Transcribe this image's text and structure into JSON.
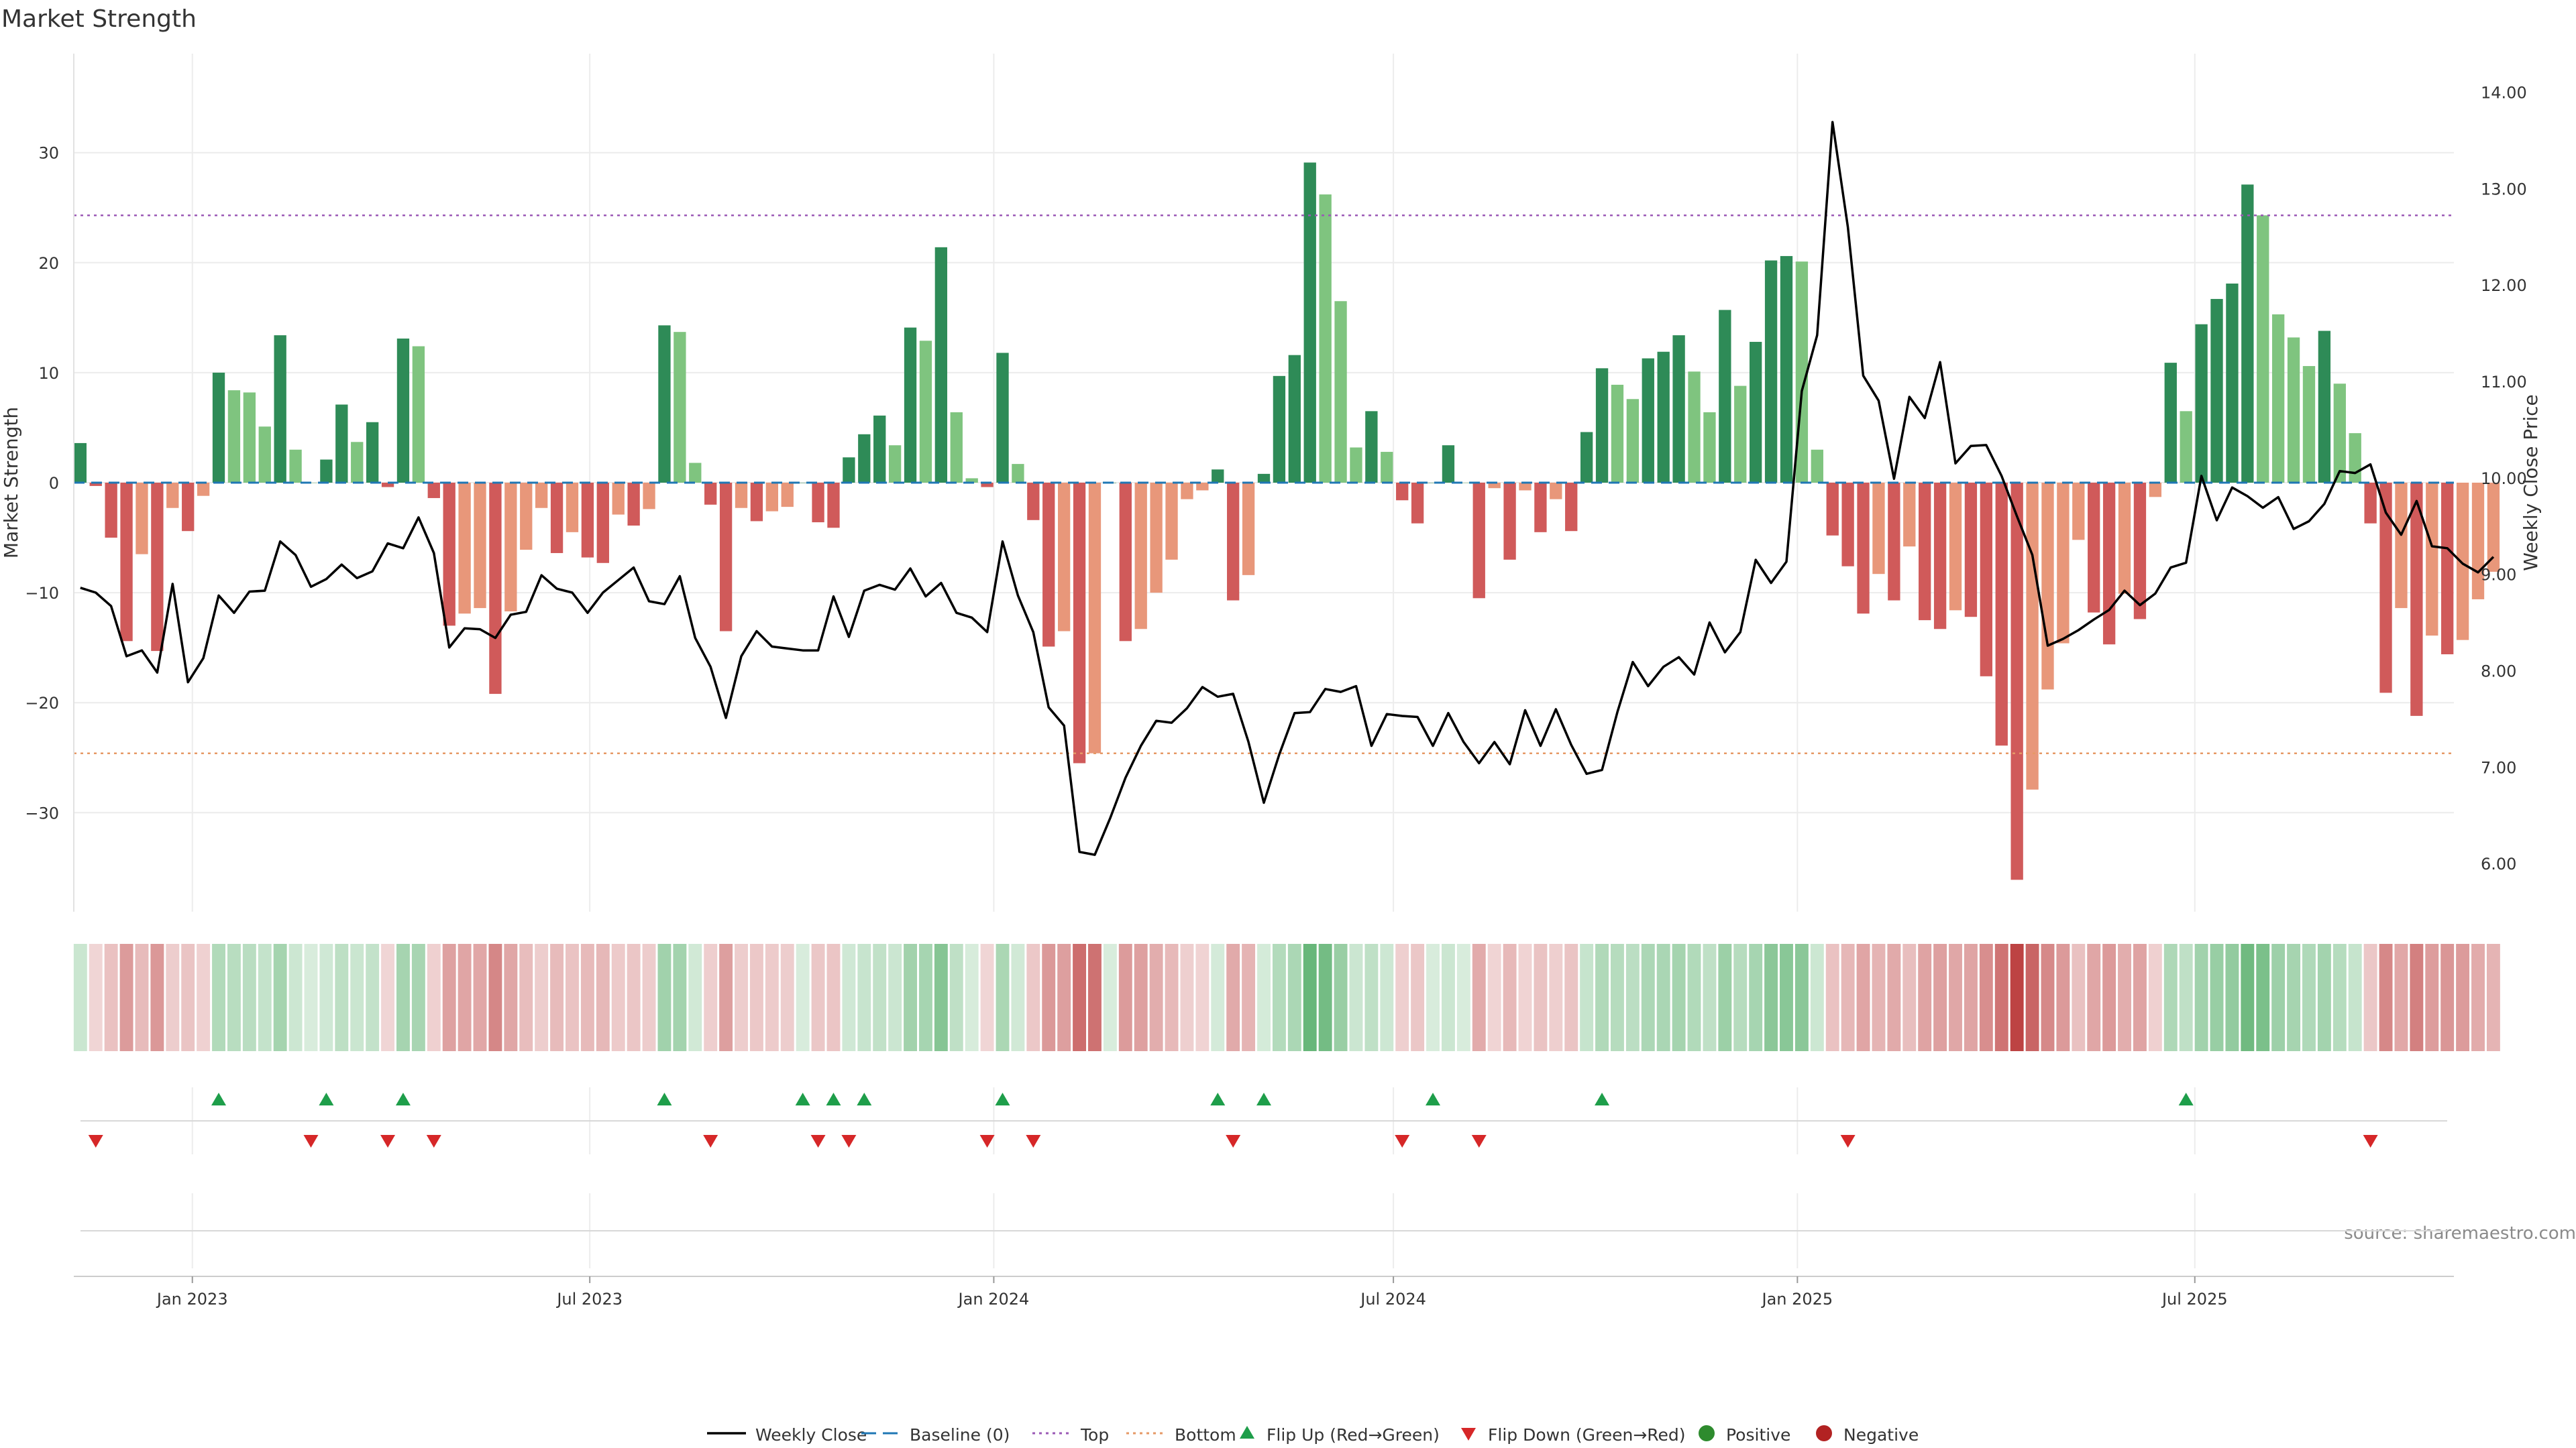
{
  "title": "Market Strength",
  "source": "source: sharemaestro.com",
  "chart_data": {
    "type": "bar",
    "start_date": "2022-11-11",
    "week_step_days": 7,
    "ylabel_left": "Market Strength",
    "ylabel_right": "Weekly Close Price",
    "ylim_left": [
      -39,
      39
    ],
    "ylim_right": [
      5.5,
      14.4
    ],
    "yticks_left": [
      30,
      20,
      10,
      0,
      -10,
      -20,
      -30
    ],
    "ytick_labels_left": [
      "30",
      "20",
      "10",
      "0",
      "−10",
      "−20",
      "−30"
    ],
    "yticks_right": [
      14,
      13,
      12,
      11,
      10,
      9,
      8,
      7,
      6
    ],
    "ytick_labels_right": [
      "14.00",
      "13.00",
      "12.00",
      "11.00",
      "10.00",
      "9.00",
      "8.00",
      "7.00",
      "6.00"
    ],
    "xlim": [
      "2022-11-08",
      "2025-10-27"
    ],
    "xticks": [
      "2023-01-01",
      "2023-07-01",
      "2024-01-01",
      "2024-07-01",
      "2025-01-01",
      "2025-07-01"
    ],
    "xtick_labels": [
      "Jan 2023",
      "Jul 2023",
      "Jan 2024",
      "Jul 2024",
      "Jan 2025",
      "Jul 2025"
    ],
    "grid": true,
    "legend_position": "bottom-center",
    "top_threshold": 24.3,
    "bottom_threshold": -24.6,
    "strength": [
      3.6,
      -0.3,
      -5,
      -14.4,
      -6.5,
      -15.3,
      -2.3,
      -4.4,
      -1.2,
      10,
      8.4,
      8.2,
      5.1,
      13.4,
      3,
      0,
      2.1,
      7.1,
      3.7,
      5.5,
      -0.4,
      13.1,
      12.4,
      -1.4,
      -13,
      -11.9,
      -11.4,
      -19.2,
      -11.7,
      -6.1,
      -2.3,
      -6.4,
      -4.5,
      -6.8,
      -7.3,
      -2.9,
      -3.9,
      -2.4,
      14.3,
      13.7,
      1.8,
      -2,
      -13.5,
      -2.3,
      -3.5,
      -2.6,
      -2.2,
      0,
      -3.6,
      -4.1,
      2.3,
      4.4,
      6.1,
      3.4,
      14.1,
      12.9,
      21.4,
      6.4,
      0.4,
      -0.4,
      11.8,
      1.7,
      -3.4,
      -14.9,
      -13.5,
      -25.5,
      -24.6,
      0,
      -14.4,
      -13.3,
      -10,
      -7,
      -1.5,
      -0.7,
      1.2,
      -10.7,
      -8.4,
      0.8,
      9.7,
      11.6,
      29.1,
      26.2,
      16.5,
      3.2,
      6.5,
      2.8,
      -1.6,
      -3.7,
      0,
      3.4,
      0,
      -10.5,
      -0.5,
      -7,
      -0.7,
      -4.5,
      -1.5,
      -4.4,
      4.6,
      10.4,
      8.9,
      7.6,
      11.3,
      11.9,
      13.4,
      10.1,
      6.4,
      15.7,
      8.8,
      12.8,
      20.2,
      20.6,
      20.1,
      3,
      -4.8,
      -7.6,
      -11.9,
      -8.3,
      -10.7,
      -5.8,
      -12.5,
      -13.3,
      -11.6,
      -12.2,
      -17.6,
      -23.9,
      -36.1,
      -27.9,
      -18.8,
      -14.6,
      -5.2,
      -11.8,
      -14.7,
      -10.1,
      -12.4,
      -1.3,
      10.9,
      6.5,
      14.4,
      16.7,
      18.1,
      27.1,
      24.3,
      15.3,
      13.2,
      10.6,
      13.8,
      9,
      4.5,
      -3.7,
      -19.1,
      -11.4,
      -21.2,
      -13.9,
      -15.6,
      -14.3,
      -10.6,
      -8.1
    ],
    "weekly_close": [
      8.86,
      8.81,
      8.67,
      8.15,
      8.21,
      7.98,
      8.9,
      7.88,
      8.13,
      8.78,
      8.6,
      8.82,
      8.83,
      9.34,
      9.2,
      8.87,
      8.95,
      9.1,
      8.96,
      9.03,
      9.32,
      9.27,
      9.59,
      9.22,
      8.24,
      8.44,
      8.43,
      8.34,
      8.58,
      8.61,
      8.99,
      8.85,
      8.81,
      8.6,
      8.81,
      8.94,
      9.07,
      8.72,
      8.69,
      8.98,
      8.34,
      8.04,
      7.51,
      8.15,
      8.41,
      8.25,
      8.23,
      8.21,
      8.21,
      8.77,
      8.35,
      8.83,
      8.89,
      8.84,
      9.06,
      8.77,
      8.91,
      8.6,
      8.55,
      8.4,
      9.34,
      8.78,
      8.4,
      7.62,
      7.43,
      6.12,
      6.09,
      6.47,
      6.89,
      7.22,
      7.48,
      7.46,
      7.61,
      7.83,
      7.73,
      7.76,
      7.26,
      6.63,
      7.13,
      7.56,
      7.57,
      7.81,
      7.78,
      7.84,
      7.22,
      7.55,
      7.53,
      7.52,
      7.22,
      7.56,
      7.26,
      7.04,
      7.26,
      7.03,
      7.59,
      7.22,
      7.6,
      7.23,
      6.93,
      6.97,
      7.57,
      8.09,
      7.84,
      8.04,
      8.14,
      7.96,
      8.5,
      8.19,
      8.4,
      9.15,
      8.91,
      9.13,
      10.9,
      11.48,
      13.69,
      12.6,
      11.06,
      10.8,
      9.99,
      10.84,
      10.62,
      11.2,
      10.15,
      10.33,
      10.34,
      10.02,
      9.6,
      9.2,
      8.26,
      8.33,
      8.42,
      8.53,
      8.63,
      8.83,
      8.68,
      8.8,
      9.07,
      9.12,
      10.02,
      9.56,
      9.9,
      9.81,
      9.69,
      9.8,
      9.47,
      9.55,
      9.73,
      10.07,
      10.05,
      10.14,
      9.64,
      9.41,
      9.76,
      9.29,
      9.27,
      9.11,
      9.02,
      9.18
    ],
    "flip_up_weeks": [
      9,
      16,
      21,
      38,
      47,
      49,
      51,
      60,
      74,
      77,
      88,
      99,
      137
    ],
    "flip_down_weeks": [
      1,
      15,
      20,
      23,
      41,
      48,
      50,
      59,
      62,
      75,
      86,
      91,
      115,
      149
    ],
    "series": [
      {
        "name": "Weekly Close",
        "color": "#000000"
      },
      {
        "name": "Baseline (0)",
        "color": "#1f77b4"
      },
      {
        "name": "Top",
        "color": "#9b59b6"
      },
      {
        "name": "Bottom",
        "color": "#e69966"
      },
      {
        "name": "Flip Up (Red→Green)",
        "color": "#1e9e4a"
      },
      {
        "name": "Flip Down (Green→Red)",
        "color": "#d62728"
      },
      {
        "name": "Positive",
        "color": "#2e8b2e"
      },
      {
        "name": "Negative",
        "color": "#b22222"
      }
    ]
  }
}
